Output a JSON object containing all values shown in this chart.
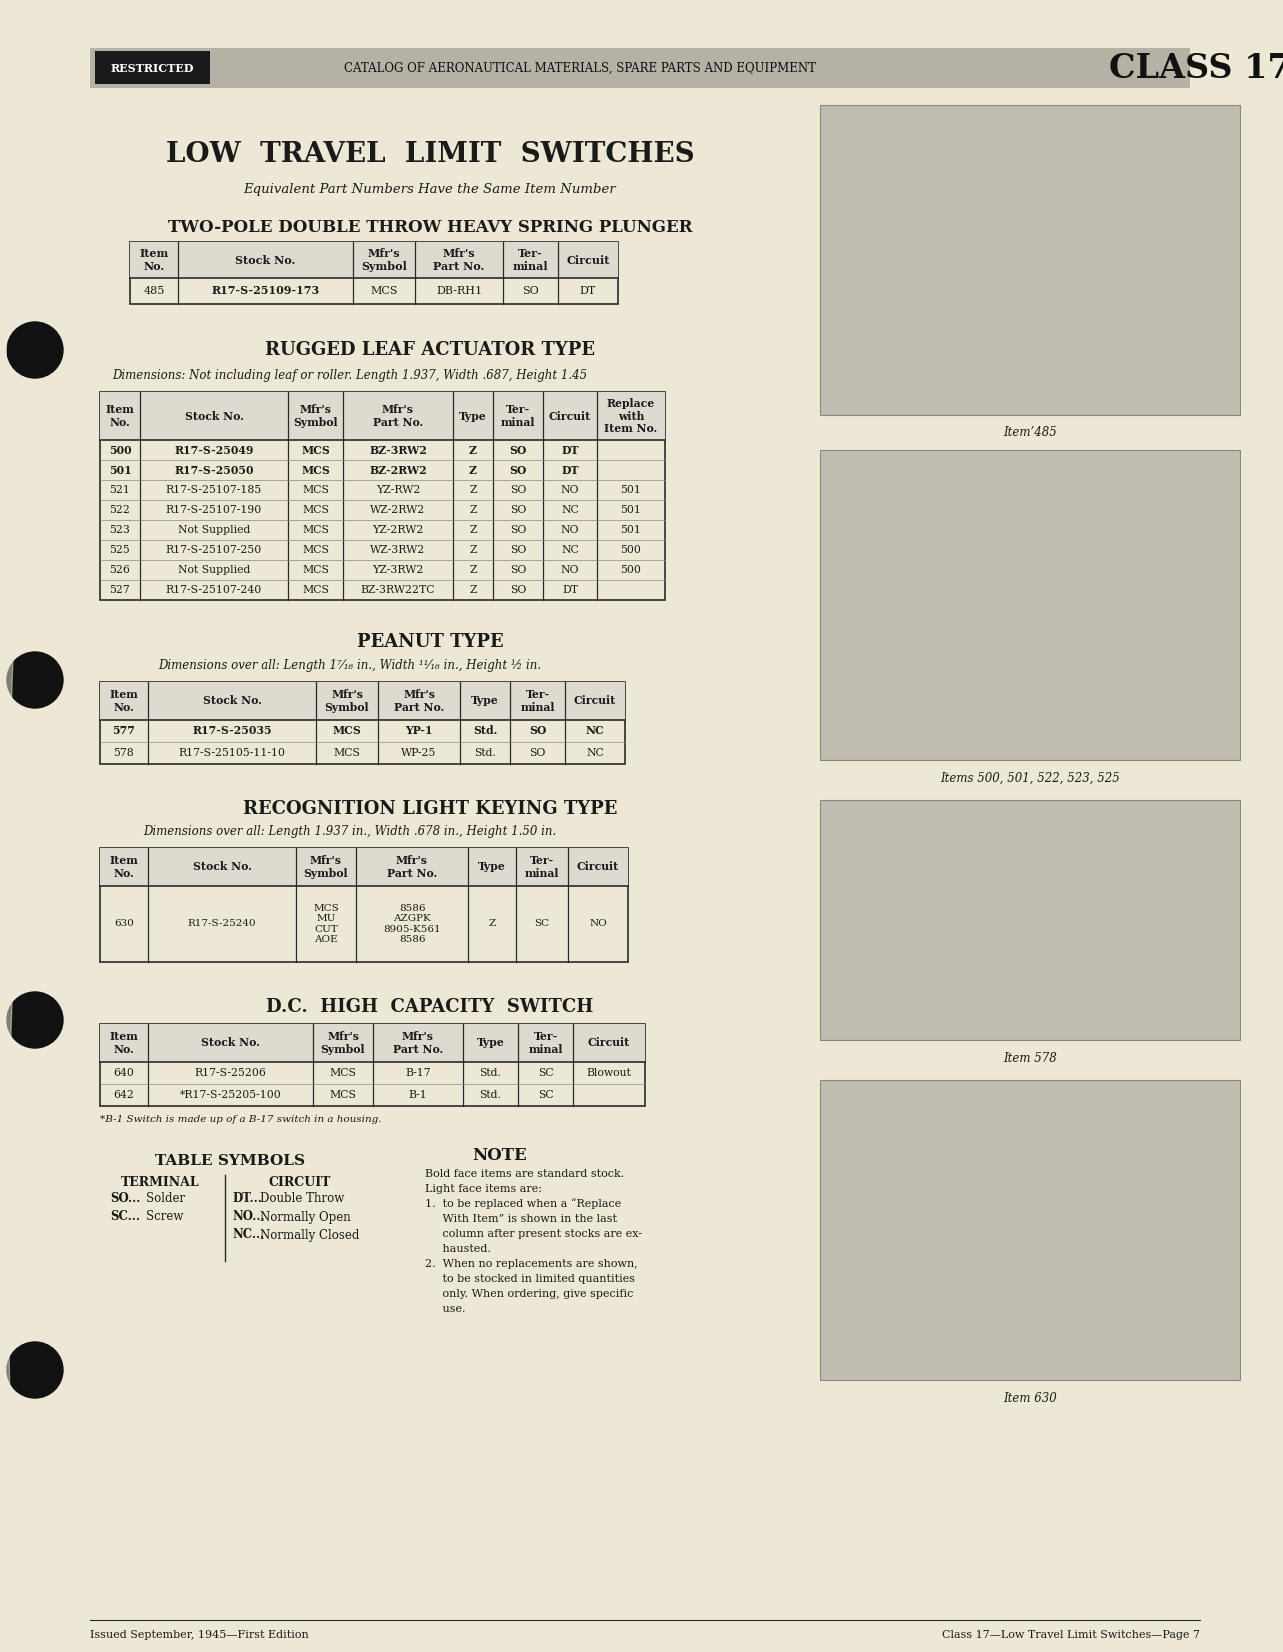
{
  "page_bg": "#ede8d5",
  "header_bg": "#b8b4a8",
  "restricted_bg": "#1a1a1a",
  "restricted_text": "#ffffff",
  "class_text": "CLASS 17",
  "header_catalog_text": "CATALOG OF AERONAUTICAL MATERIALS, SPARE PARTS AND EQUIPMENT",
  "page_title": "LOW  TRAVEL  LIMIT  SWITCHES",
  "page_subtitle": "Equivalent Part Numbers Have the Same Item Number",
  "section1_title": "TWO-POLE DOUBLE THROW HEAVY SPRING PLUNGER",
  "section1_headers": [
    "Item\nNo.",
    "Stock No.",
    "Mfr's\nSymbol",
    "Mfr's\nPart No.",
    "Ter-\nminal",
    "Circuit"
  ],
  "section1_rows": [
    [
      "485",
      "R17-S-25109-173",
      "MCS",
      "DB-RH1",
      "SO",
      "DT"
    ]
  ],
  "section1_bold_stock": [
    0
  ],
  "section2_title": "RUGGED LEAF ACTUATOR TYPE",
  "section2_dim": "Dimensions: Not including leaf or roller. Length 1.937, Width .687, Height 1.45",
  "section2_headers": [
    "Item\nNo.",
    "Stock No.",
    "Mfr's\nSymbol",
    "Mfr's\nPart No.",
    "Type",
    "Ter-\nminal",
    "Circuit",
    "Replace\nwith\nItem No."
  ],
  "section2_rows": [
    [
      "500",
      "R17-S-25049",
      "MCS",
      "BZ-3RW2",
      "Z",
      "SO",
      "DT",
      ""
    ],
    [
      "501",
      "R17-S-25050",
      "MCS",
      "BZ-2RW2",
      "Z",
      "SO",
      "DT",
      ""
    ],
    [
      "521",
      "R17-S-25107-185",
      "MCS",
      "YZ-RW2",
      "Z",
      "SO",
      "NO",
      "501"
    ],
    [
      "522",
      "R17-S-25107-190",
      "MCS",
      "WZ-2RW2",
      "Z",
      "SO",
      "NC",
      "501"
    ],
    [
      "523",
      "Not Supplied",
      "MCS",
      "YZ-2RW2",
      "Z",
      "SO",
      "NO",
      "501"
    ],
    [
      "525",
      "R17-S-25107-250",
      "MCS",
      "WZ-3RW2",
      "Z",
      "SO",
      "NC",
      "500"
    ],
    [
      "526",
      "Not Supplied",
      "MCS",
      "YZ-3RW2",
      "Z",
      "SO",
      "NO",
      "500"
    ],
    [
      "527",
      "R17-S-25107-240",
      "MCS",
      "BZ-3RW22TC",
      "Z",
      "SO",
      "DT",
      ""
    ]
  ],
  "section2_bold_rows": [
    0,
    1
  ],
  "section3_title": "PEANUT TYPE",
  "section3_dim": "Dimensions over all: Length 1⁷⁄₁₆ in., Width ¹¹⁄₁₆ in., Height ½ in.",
  "section3_headers": [
    "Item\nNo.",
    "Stock No.",
    "Mfr's\nSymbol",
    "Mfr's\nPart No.",
    "Type",
    "Ter-\nminal",
    "Circuit"
  ],
  "section3_rows": [
    [
      "577",
      "R17-S-25035",
      "MCS",
      "YP-1",
      "Std.",
      "SO",
      "NC"
    ],
    [
      "578",
      "R17-S-25105-11-10",
      "MCS",
      "WP-25",
      "Std.",
      "SO",
      "NC"
    ]
  ],
  "section3_bold_rows": [
    0
  ],
  "section4_title": "RECOGNITION LIGHT KEYING TYPE",
  "section4_dim": "Dimensions over all: Length 1.937 in., Width .678 in., Height 1.50 in.",
  "section4_headers": [
    "Item\nNo.",
    "Stock No.",
    "Mfr's\nSymbol",
    "Mfr's\nPart No.",
    "Type",
    "Ter-\nminal",
    "Circuit"
  ],
  "section4_sym_col": "MCS\nMU\nCUT\nAOE",
  "section4_part_col": "8586\nAZGPK\n8905-K561\n8586",
  "section5_title": "D.C.  HIGH  CAPACITY  SWITCH",
  "section5_headers": [
    "Item\nNo.",
    "Stock No.",
    "Mfr's\nSymbol",
    "Mfr's\nPart No.",
    "Type",
    "Ter-\nminal",
    "Circuit"
  ],
  "section5_rows": [
    [
      "640",
      "R17-S-25206",
      "MCS",
      "B-17",
      "Std.",
      "SC",
      "Blowout"
    ],
    [
      "642",
      "*R17-S-25205-100",
      "MCS",
      "B-1",
      "Std.",
      "SC",
      ""
    ]
  ],
  "footnote5": "*B-1 Switch is made up of a B-17 switch in a housing.",
  "symbols_title": "TABLE SYMBOLS",
  "terminal_header": "TERMINAL",
  "circuit_header": "CIRCUIT",
  "terminal_items": [
    "SO...Solder",
    "SC...Screw"
  ],
  "circuit_items": [
    "DT...Double Throw",
    "NO...Normally Open",
    "NC...Normally Closed"
  ],
  "note_title": "NOTE",
  "note_lines": [
    "Bold face items are standard stock.",
    "Light face items are:",
    "1.  to be replaced when a “Replace",
    "     With Item” is shown in the last",
    "     column after present stocks are ex-",
    "     hausted.",
    "2.  When no replacements are shown,",
    "     to be stocked in limited quantities",
    "     only. When ordering, give specific",
    "     use."
  ],
  "footer_left": "Issued September, 1945—First Edition",
  "footer_right": "Class 17—Low Travel Limit Switches—Page 7",
  "photo_captions": [
    "Item’485",
    "Items 500, 501, 522, 523, 525",
    "Item 578",
    "Item 630"
  ],
  "lc": "#2a2a2a",
  "tc": "#1a1a1a"
}
